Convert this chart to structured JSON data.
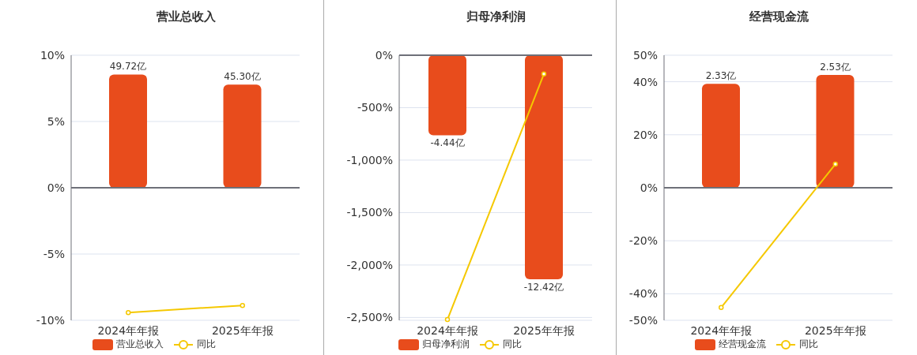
{
  "chart_data": [
    {
      "type": "bar",
      "title": "营业总收入",
      "categories": [
        "2024年年报",
        "2025年年报"
      ],
      "series": [
        {
          "name": "营业总收入",
          "axis": "y2",
          "color": "#e84c1c",
          "values": [
            49.72,
            45.3
          ],
          "value_labels": [
            "49.72亿",
            "45.30亿"
          ]
        },
        {
          "name": "同比",
          "type": "line",
          "color": "#f5c800",
          "marker": "circle",
          "values": [
            -9.42,
            -8.88
          ]
        }
      ],
      "ylim": [
        -10,
        10
      ],
      "yticks": [
        {
          "value": -10,
          "label": "-10%"
        },
        {
          "value": -5,
          "label": "-5%"
        },
        {
          "value": 0,
          "label": "0%"
        },
        {
          "value": 5,
          "label": "5%"
        },
        {
          "value": 10,
          "label": "10%"
        }
      ],
      "y2lim": [
        -58.2,
        58.2
      ],
      "grid": "y",
      "legend": "bottom"
    },
    {
      "type": "bar",
      "title": "归母净利润",
      "categories": [
        "2024年年报",
        "2025年年报"
      ],
      "series": [
        {
          "name": "归母净利润",
          "axis": "y2",
          "color": "#e84c1c",
          "values": [
            -4.44,
            -12.42
          ],
          "value_labels": [
            "-4.44亿",
            "-12.42亿"
          ]
        },
        {
          "name": "同比",
          "type": "line",
          "color": "#f5c800",
          "marker": "circle",
          "values": [
            -2520,
            -179
          ]
        }
      ],
      "ylim": [
        -2527,
        0
      ],
      "yticks": [
        {
          "value": -2500,
          "label": "-2,500%"
        },
        {
          "value": -2000,
          "label": "-2,000%"
        },
        {
          "value": -1500,
          "label": "-1,500%"
        },
        {
          "value": -1000,
          "label": "-1,000%"
        },
        {
          "value": -500,
          "label": "-500%"
        },
        {
          "value": 0,
          "label": "0%"
        }
      ],
      "y2lim": [
        -14.7,
        0
      ],
      "grid": "y",
      "legend": "bottom"
    },
    {
      "type": "bar",
      "title": "经营现金流",
      "categories": [
        "2024年年报",
        "2025年年报"
      ],
      "series": [
        {
          "name": "经营现金流",
          "axis": "y2",
          "color": "#e84c1c",
          "values": [
            2.33,
            2.53
          ],
          "value_labels": [
            "2.33亿",
            "2.53亿"
          ]
        },
        {
          "name": "同比",
          "type": "line",
          "color": "#f5c800",
          "marker": "circle",
          "values": [
            -45.2,
            8.9
          ]
        }
      ],
      "ylim": [
        -50,
        50
      ],
      "yticks": [
        {
          "value": -50,
          "label": "-50%"
        },
        {
          "value": -40,
          "label": "-40%"
        },
        {
          "value": -20,
          "label": "-20%"
        },
        {
          "value": 0,
          "label": "0%"
        },
        {
          "value": 20,
          "label": "20%"
        },
        {
          "value": 40,
          "label": "40%"
        },
        {
          "value": 50,
          "label": "50%"
        }
      ],
      "y2lim": [
        -2.97,
        2.97
      ],
      "grid": "y",
      "legend": "bottom"
    }
  ]
}
